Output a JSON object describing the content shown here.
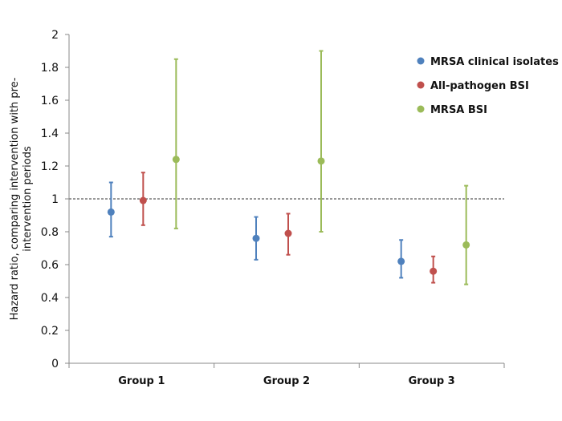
{
  "chart_data": {
    "type": "scatter",
    "title": "",
    "ylabel_line1": "Hazard ratio, comparing intervention with pre-",
    "ylabel_line2": "intervention periods",
    "xlabel": "",
    "ylim": [
      0,
      2
    ],
    "yticks": [
      "0",
      "0.2",
      "0.4",
      "0.6",
      "0.8",
      "1",
      "1.2",
      "1.4",
      "1.6",
      "1.8",
      "2"
    ],
    "reference_line": 1,
    "categories": [
      "Group 1",
      "Group 2",
      "Group 3"
    ],
    "series": [
      {
        "name": "MRSA clinical isolates",
        "color": "#4f81bd",
        "values": [
          0.92,
          0.76,
          0.62
        ],
        "lower": [
          0.77,
          0.63,
          0.52
        ],
        "upper": [
          1.1,
          0.89,
          0.75
        ]
      },
      {
        "name": "All-pathogen BSI",
        "color": "#c0504d",
        "values": [
          0.99,
          0.79,
          0.56
        ],
        "lower": [
          0.84,
          0.66,
          0.49
        ],
        "upper": [
          1.16,
          0.91,
          0.65
        ]
      },
      {
        "name": "MRSA BSI",
        "color": "#9bbb59",
        "values": [
          1.24,
          1.23,
          0.72
        ],
        "lower": [
          0.82,
          0.8,
          0.48
        ],
        "upper": [
          1.85,
          1.9,
          1.08
        ]
      }
    ]
  }
}
